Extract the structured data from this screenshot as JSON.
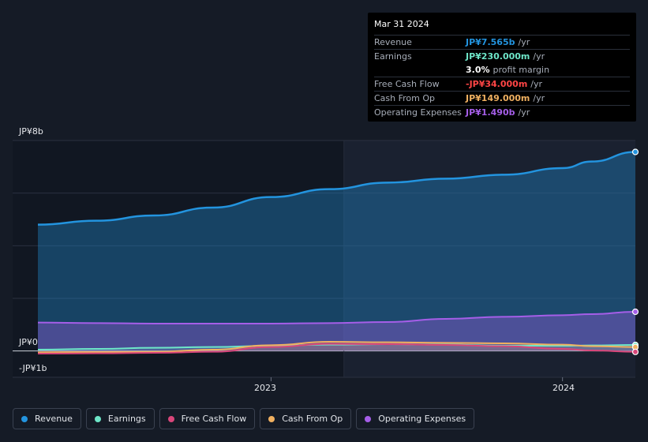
{
  "tooltip": {
    "date": "Mar 31 2024",
    "rows": [
      {
        "label": "Revenue",
        "value": "JP¥7.565b",
        "unit": "/yr",
        "color": "#2394df"
      },
      {
        "label": "Earnings",
        "value": "JP¥230.000m",
        "unit": "/yr",
        "color": "#6ee6c8"
      },
      {
        "label": "",
        "value": "3.0%",
        "unit": "profit margin",
        "color": "#ffffff"
      },
      {
        "label": "Free Cash Flow",
        "value": "-JP¥34.000m",
        "unit": "/yr",
        "color": "#ff4545"
      },
      {
        "label": "Cash From Op",
        "value": "JP¥149.000m",
        "unit": "/yr",
        "color": "#f0b060"
      },
      {
        "label": "Operating Expenses",
        "value": "JP¥1.490b",
        "unit": "/yr",
        "color": "#a55ee8"
      }
    ]
  },
  "axis": {
    "y_top_label": "JP¥8b",
    "y_zero_label": "JP¥0",
    "y_bottom_label": "-JP¥1b",
    "x_labels": [
      "2023",
      "2024"
    ]
  },
  "legend": [
    {
      "label": "Revenue",
      "color": "#2394df"
    },
    {
      "label": "Earnings",
      "color": "#6ee6c8"
    },
    {
      "label": "Free Cash Flow",
      "color": "#d9467a"
    },
    {
      "label": "Cash From Op",
      "color": "#f0b060"
    },
    {
      "label": "Operating Expenses",
      "color": "#a55ee8"
    }
  ],
  "chart_data": {
    "type": "area",
    "title": "",
    "xlabel": "",
    "ylabel": "",
    "ylim": [
      -1.0,
      8.0
    ],
    "y_unit": "JP¥b",
    "x": [
      2022.2,
      2022.4,
      2022.6,
      2022.8,
      2023.0,
      2023.2,
      2023.4,
      2023.6,
      2023.8,
      2024.0,
      2024.1,
      2024.25
    ],
    "x_ticks": [
      2023,
      2024
    ],
    "highlight_start_x": 2023.25,
    "series": [
      {
        "name": "Revenue",
        "color": "#2394df",
        "values": [
          4.8,
          4.95,
          5.15,
          5.45,
          5.85,
          6.15,
          6.4,
          6.55,
          6.7,
          6.95,
          7.2,
          7.565
        ]
      },
      {
        "name": "Operating Expenses",
        "color": "#a55ee8",
        "values": [
          1.08,
          1.06,
          1.04,
          1.04,
          1.04,
          1.06,
          1.1,
          1.22,
          1.3,
          1.36,
          1.4,
          1.49
        ]
      },
      {
        "name": "Earnings",
        "color": "#6ee6c8",
        "values": [
          0.05,
          0.08,
          0.12,
          0.15,
          0.2,
          0.24,
          0.26,
          0.24,
          0.2,
          0.2,
          0.21,
          0.23
        ]
      },
      {
        "name": "Cash From Op",
        "color": "#f0b060",
        "values": [
          -0.05,
          -0.04,
          -0.03,
          0.05,
          0.22,
          0.35,
          0.33,
          0.31,
          0.29,
          0.24,
          0.18,
          0.149
        ]
      },
      {
        "name": "Free Cash Flow",
        "color": "#d9467a",
        "values": [
          -0.1,
          -0.09,
          -0.07,
          -0.03,
          0.15,
          0.27,
          0.26,
          0.23,
          0.18,
          0.08,
          0.02,
          -0.034
        ]
      }
    ]
  }
}
